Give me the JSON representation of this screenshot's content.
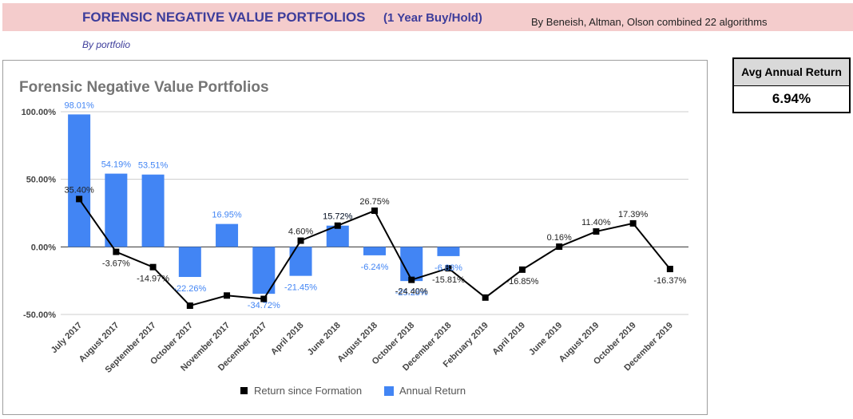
{
  "header": {
    "title": "FORENSIC NEGATIVE VALUE PORTFOLIOS",
    "subtitle": "(1 Year Buy/Hold)",
    "byline": "By Beneish, Altman, Olson combined 22 algorithms",
    "by_portfolio": "By portfolio"
  },
  "kpi": {
    "label": "Avg Annual Return",
    "value": "6.94%"
  },
  "colors": {
    "bar": "#4285f4",
    "line": "#000000",
    "bar_label": "#4285f4",
    "header_bg": "#f4cccc",
    "title": "#3d3d9b"
  },
  "chart_data": {
    "type": "bar+line",
    "title": "Forensic Negative Value Portfolios",
    "ylim": [
      -50,
      100
    ],
    "yticks": [
      "100.00%",
      "50.00%",
      "0.00%",
      "-50.00%"
    ],
    "ytick_values": [
      100,
      50,
      0,
      -50
    ],
    "grid": true,
    "legend_position": "bottom",
    "categories": [
      "July 2017",
      "August 2017",
      "September 2017",
      "October 2017",
      "November 2017",
      "December 2017",
      "April 2018",
      "June 2018",
      "August 2018",
      "October 2018",
      "December 2018",
      "February 2019",
      "April 2019",
      "June 2019",
      "August 2019",
      "October 2019",
      "December 2019"
    ],
    "series": [
      {
        "name": "Return since Formation",
        "kind": "line",
        "values": [
          35.4,
          -3.67,
          -14.97,
          -43.5,
          -36.0,
          -38.5,
          4.6,
          15.72,
          26.75,
          -24.4,
          -15.81,
          -37.5,
          -16.85,
          0.16,
          11.4,
          17.39,
          -16.37
        ],
        "labels": [
          "35.40%",
          "-3.67%",
          "-14.97%",
          "",
          "",
          "",
          "4.60%",
          "15.72%",
          "26.75%",
          "-24.40%",
          "-15.81%",
          "",
          "-16.85%",
          "0.16%",
          "11.40%",
          "17.39%",
          "-16.37%"
        ]
      },
      {
        "name": "Annual Return",
        "kind": "bar",
        "values": [
          98.01,
          54.19,
          53.51,
          -22.26,
          16.95,
          -34.72,
          -21.45,
          15.72,
          -6.24,
          -25.28,
          -6.83,
          null,
          null,
          null,
          null,
          null,
          null
        ],
        "labels": [
          "98.01%",
          "54.19%",
          "53.51%",
          "-22.26%",
          "16.95%",
          "-34.72%",
          "-21.45%",
          "15.72%",
          "-6.24%",
          "-25.28%",
          "-6.83%",
          "",
          "",
          "",
          "",
          "",
          ""
        ]
      }
    ]
  }
}
